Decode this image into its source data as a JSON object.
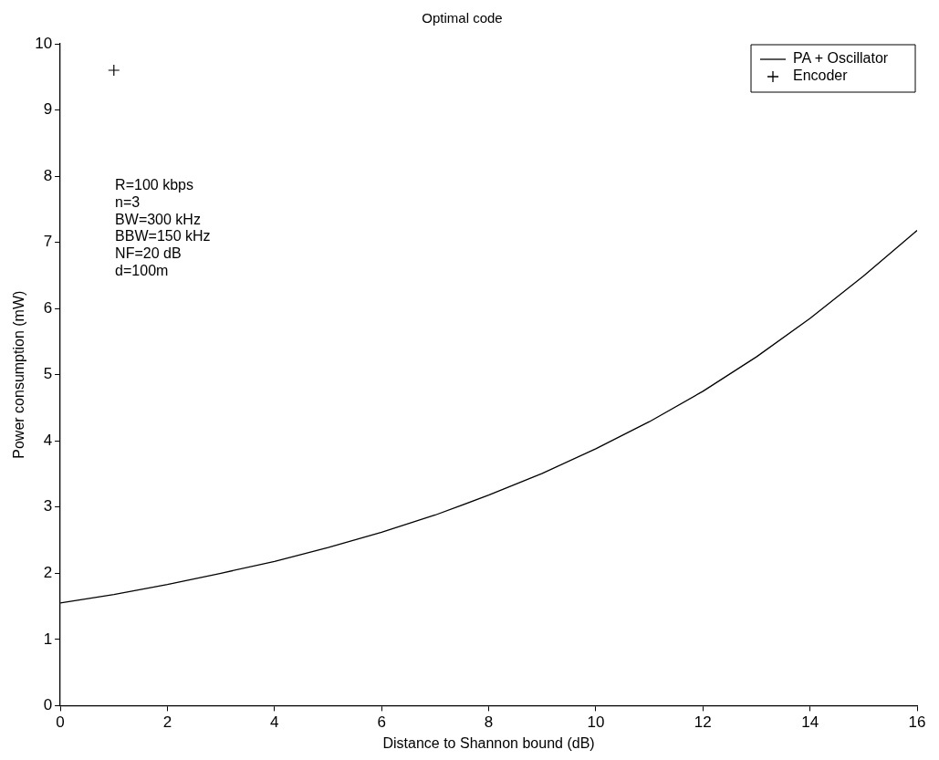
{
  "chart_data": {
    "type": "line",
    "title": "Optimal code",
    "xlabel": "Distance to Shannon bound (dB)",
    "ylabel": "Power consumption (mW)",
    "xlim": [
      0,
      16
    ],
    "xticks": [
      0,
      2,
      4,
      6,
      8,
      10,
      12,
      14,
      16
    ],
    "ylim": [
      0,
      10
    ],
    "yticks": [
      0,
      1,
      2,
      3,
      4,
      5,
      6,
      7,
      8,
      9,
      10
    ],
    "grid": false,
    "legend": "top right",
    "series": [
      {
        "name": "PA + Oscillator",
        "marker": "none",
        "color": "#000000",
        "x": [
          0,
          1,
          2,
          3,
          4,
          5,
          6,
          7,
          8,
          9,
          10,
          11,
          12,
          13,
          14,
          15,
          16
        ],
        "values": [
          1.55,
          1.68,
          1.83,
          2.0,
          2.18,
          2.39,
          2.62,
          2.88,
          3.18,
          3.51,
          3.88,
          4.29,
          4.75,
          5.27,
          5.85,
          6.49,
          7.18
        ]
      },
      {
        "name": "Encoder",
        "type": "scatter",
        "marker": "cross",
        "color": "#000000",
        "x": [
          1
        ],
        "values": [
          9.6
        ]
      }
    ],
    "annotations": [
      "R=100 kbps",
      "n=3",
      "BW=300 kHz",
      "BBW=150 kHz",
      "NF=20 dB",
      "d=100m"
    ]
  }
}
